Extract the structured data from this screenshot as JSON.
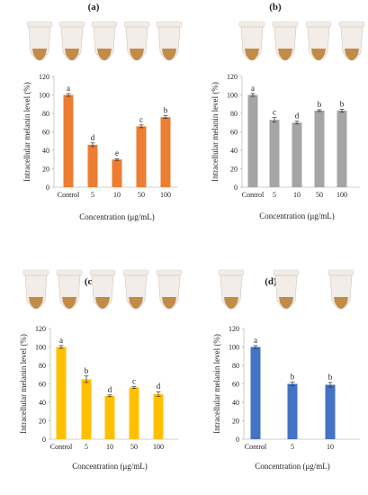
{
  "chart_data": [
    {
      "panel_label": "(a)",
      "type": "bar",
      "categories": [
        "Control",
        "5",
        "10",
        "50",
        "100"
      ],
      "values": [
        100,
        46,
        30,
        66,
        76
      ],
      "errors": [
        1.5,
        2,
        1,
        1.5,
        1.5
      ],
      "letters": [
        "a",
        "d",
        "e",
        "c",
        "b"
      ],
      "color": "#ED7D31",
      "ylabel": "Intracellular melanin level (%)",
      "xlabel": "Concentration (μg/mL)",
      "ylim": [
        0,
        120
      ],
      "yticks": [
        "0",
        "20",
        "40",
        "60",
        "80",
        "100",
        "120"
      ],
      "tube_count": 5
    },
    {
      "panel_label": "(b)",
      "type": "bar",
      "categories": [
        "Control",
        "5",
        "10",
        "50",
        "100"
      ],
      "values": [
        100,
        73,
        70,
        83,
        83
      ],
      "errors": [
        1.5,
        2.5,
        1.5,
        1,
        1.5
      ],
      "letters": [
        "a",
        "c",
        "d",
        "b",
        "b"
      ],
      "color": "#A5A5A5",
      "ylabel": "Intracellular melanin level (%)",
      "xlabel": "Concentration (μg/mL)",
      "ylim": [
        0,
        120
      ],
      "yticks": [
        "0",
        "20",
        "40",
        "60",
        "80",
        "100",
        "120"
      ],
      "tube_count": 5
    },
    {
      "panel_label": "(c)",
      "type": "bar",
      "categories": [
        "Control",
        "5",
        "10",
        "50",
        "100"
      ],
      "values": [
        100,
        65,
        47,
        56,
        49
      ],
      "errors": [
        1.5,
        3.5,
        1,
        1,
        2.5
      ],
      "letters": [
        "a",
        "b",
        "d",
        "c",
        "d"
      ],
      "color": "#FFC000",
      "ylabel": "Intracellular melanin level (%)",
      "xlabel": "Concentration (μg/mL)",
      "ylim": [
        0,
        120
      ],
      "yticks": [
        "0",
        "20",
        "40",
        "60",
        "80",
        "100",
        "120"
      ],
      "tube_count": 5
    },
    {
      "panel_label": "(d)",
      "type": "bar",
      "categories": [
        "Control",
        "5",
        "10"
      ],
      "values": [
        100,
        60,
        59
      ],
      "errors": [
        1.5,
        2,
        2.5
      ],
      "letters": [
        "a",
        "b",
        "b"
      ],
      "color": "#4472C4",
      "ylabel": "Intracellular melanin level (%)",
      "xlabel": "Concentration (μg/mL)",
      "ylim": [
        0,
        120
      ],
      "yticks": [
        "0",
        "20",
        "40",
        "60",
        "80",
        "100",
        "120"
      ],
      "tube_count": 3
    }
  ]
}
